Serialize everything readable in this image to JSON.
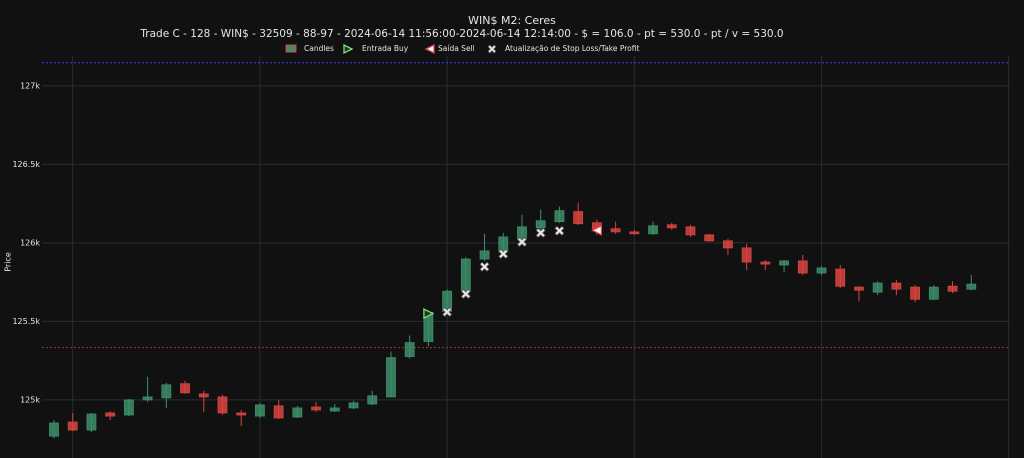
{
  "chart_data": {
    "type": "candlestick",
    "title": "WIN$ M2: Ceres",
    "subtitle": "Trade C - 128 - WIN$ - 32509 - 88-97 - 2024-06-14 11:56:00-2024-06-14 12:14:00 - $ = 106.0 - pt = 530.0 - pt / v = 530.0",
    "y_label": "Price",
    "ylim": [
      124630,
      127190
    ],
    "yticks": [
      {
        "value": 125000,
        "label": "125k"
      },
      {
        "value": 125500,
        "label": "125.5k"
      },
      {
        "value": 126000,
        "label": "126k"
      },
      {
        "value": 126500,
        "label": "126.5k"
      },
      {
        "value": 127000,
        "label": "127k"
      }
    ],
    "grid": true,
    "candles": {
      "name": "Candles",
      "up_color": "#3d8f6a",
      "down_color": "#d9443f",
      "open": [
        124769,
        124859,
        124808,
        124917,
        124904,
        125000,
        125013,
        125103,
        125038,
        125019,
        124917,
        124897,
        124962,
        124891,
        124955,
        124929,
        124949,
        124974,
        125019,
        125276,
        125372,
        125564,
        125692,
        125897,
        125942,
        126026,
        126096,
        126135,
        126199,
        126128,
        126090,
        126070,
        126058,
        126115,
        126102,
        126051,
        126013,
        125968,
        125878,
        125859,
        125885,
        125808,
        125833,
        125718,
        125686,
        125744,
        125718,
        125641,
        125724,
        125705
      ],
      "high": [
        124872,
        124917,
        124917,
        124929,
        125006,
        125147,
        125109,
        125122,
        125058,
        125032,
        124936,
        124981,
        125000,
        124962,
        124987,
        124974,
        124994,
        125058,
        125308,
        125410,
        125570,
        125705,
        125910,
        126058,
        126064,
        126179,
        126211,
        126231,
        126256,
        126147,
        126135,
        126083,
        126135,
        126128,
        126115,
        126058,
        126026,
        125994,
        125891,
        125891,
        125923,
        125853,
        125859,
        125724,
        125756,
        125763,
        125731,
        125731,
        125756,
        125795
      ],
      "low": [
        124756,
        124801,
        124795,
        124872,
        124897,
        124987,
        124949,
        125038,
        124923,
        124904,
        124833,
        124885,
        124878,
        124885,
        124923,
        124923,
        124942,
        124968,
        125019,
        125263,
        125340,
        125551,
        125686,
        125885,
        125929,
        126019,
        126077,
        126128,
        126115,
        126051,
        126058,
        126051,
        126051,
        126083,
        126038,
        126006,
        125923,
        125827,
        125827,
        125814,
        125795,
        125795,
        125712,
        125628,
        125667,
        125667,
        125622,
        125635,
        125679,
        125699
      ],
      "close": [
        124853,
        124808,
        124910,
        124897,
        125000,
        125019,
        125096,
        125045,
        125019,
        124917,
        124904,
        124968,
        124885,
        124949,
        124936,
        124949,
        124981,
        125026,
        125269,
        125365,
        125558,
        125692,
        125897,
        125949,
        126038,
        126102,
        126141,
        126205,
        126122,
        126090,
        126070,
        126058,
        126109,
        126096,
        126051,
        126013,
        125968,
        125878,
        125865,
        125885,
        125808,
        125840,
        125724,
        125699,
        125744,
        125705,
        125641,
        125718,
        125692,
        125737
      ]
    },
    "markers": [
      {
        "name": "Entrada Buy",
        "symbol": "triangle-right",
        "color": "#7ee07e",
        "x": [
          20
        ],
        "values": [
          125550
        ]
      },
      {
        "name": "Saída Sell",
        "symbol": "triangle-left",
        "color": "#e04848",
        "x": [
          29
        ],
        "values": [
          126080
        ]
      },
      {
        "name": "Atualização de Stop Loss/Take Profit",
        "symbol": "x",
        "color": "#e8e8e8",
        "x": [
          21,
          22,
          23,
          24,
          25,
          26,
          27
        ],
        "values": [
          125560,
          125675,
          125848,
          125930,
          126006,
          126064,
          126077
        ]
      }
    ],
    "hlines": [
      {
        "value": 127147,
        "color": "#3a3aff"
      },
      {
        "value": 125333,
        "color": "#a8342f"
      }
    ]
  }
}
